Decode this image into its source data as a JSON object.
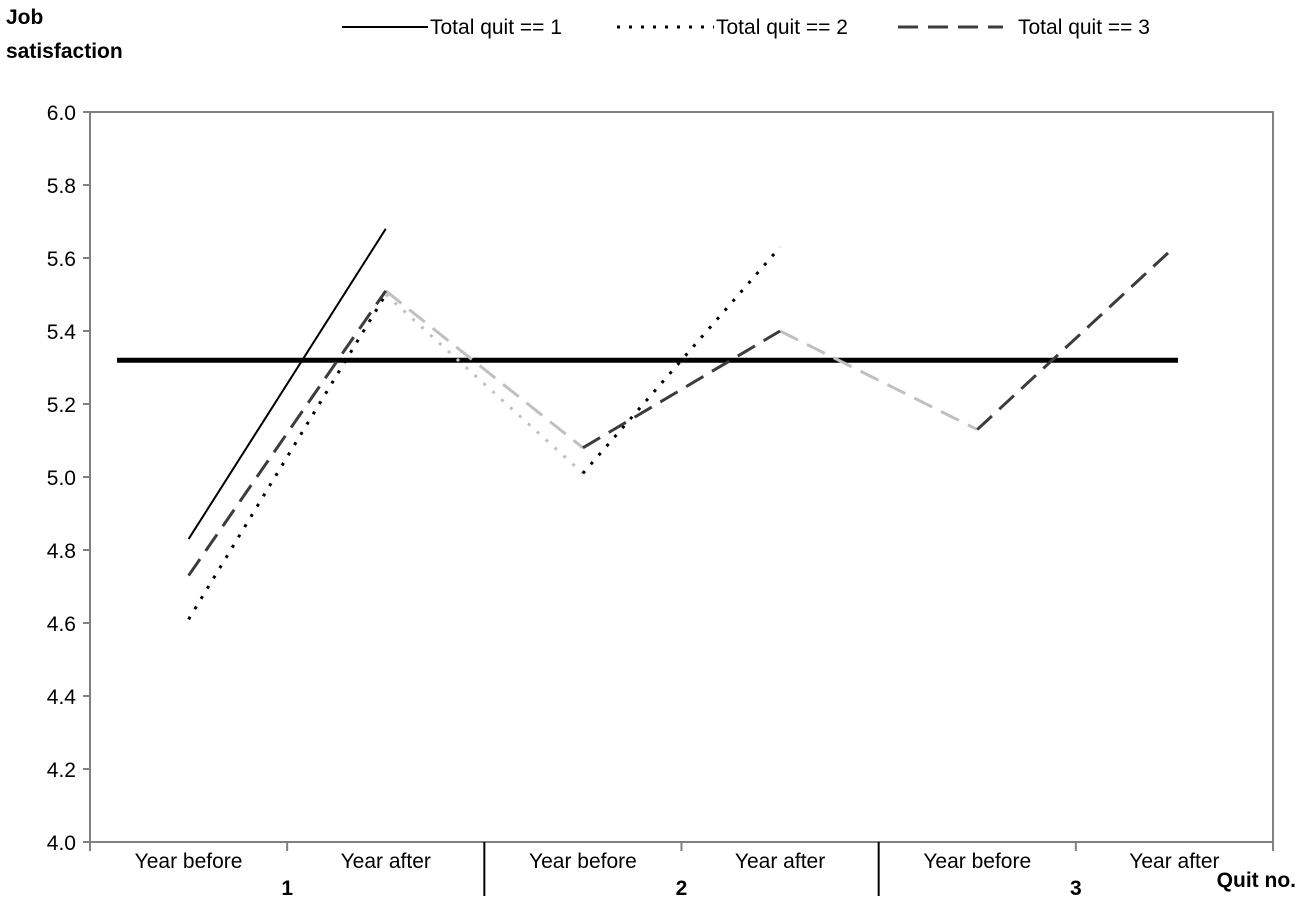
{
  "chart_data": {
    "type": "line",
    "ylabel_line1": "Job",
    "ylabel_line2": "satisfaction",
    "xlabel": "Quit no.",
    "ylim": [
      4.0,
      6.0
    ],
    "yticks": [
      "4.0",
      "4.2",
      "4.4",
      "4.6",
      "4.8",
      "5.0",
      "5.2",
      "5.4",
      "5.6",
      "5.8",
      "6.0"
    ],
    "grid": false,
    "legend_position": "top",
    "categories": [
      "Year before",
      "Year after",
      "Year before",
      "Year after",
      "Year before",
      "Year after"
    ],
    "groups": [
      "1",
      "2",
      "3"
    ],
    "reference_line": {
      "y": 5.32,
      "color": "#000000"
    },
    "series": [
      {
        "name": "Total quit == 1",
        "style": "solid",
        "color": "#000000",
        "segments": [
          {
            "x": [
              0,
              1
            ],
            "y": [
              4.83,
              5.68
            ]
          }
        ]
      },
      {
        "name": "Total quit == 2",
        "style": "dotted",
        "color": "#000000",
        "segments": [
          {
            "x": [
              0,
              1
            ],
            "y": [
              4.61,
              5.5
            ]
          },
          {
            "x": [
              2,
              3
            ],
            "y": [
              5.01,
              5.63
            ]
          }
        ],
        "connectors": [
          {
            "x": [
              1,
              2
            ],
            "y": [
              5.5,
              5.01
            ]
          }
        ]
      },
      {
        "name": "Total quit == 3",
        "style": "dashed",
        "color": "#3c3c3c",
        "segments": [
          {
            "x": [
              0,
              1
            ],
            "y": [
              4.73,
              5.51
            ]
          },
          {
            "x": [
              2,
              3
            ],
            "y": [
              5.08,
              5.4
            ]
          },
          {
            "x": [
              4,
              5
            ],
            "y": [
              5.13,
              5.63
            ]
          }
        ],
        "connectors": [
          {
            "x": [
              1,
              2
            ],
            "y": [
              5.51,
              5.08
            ]
          },
          {
            "x": [
              3,
              4
            ],
            "y": [
              5.4,
              5.13
            ]
          }
        ]
      }
    ],
    "connector_color": "#c0c0c0",
    "plot_frame_color": "#808080"
  }
}
